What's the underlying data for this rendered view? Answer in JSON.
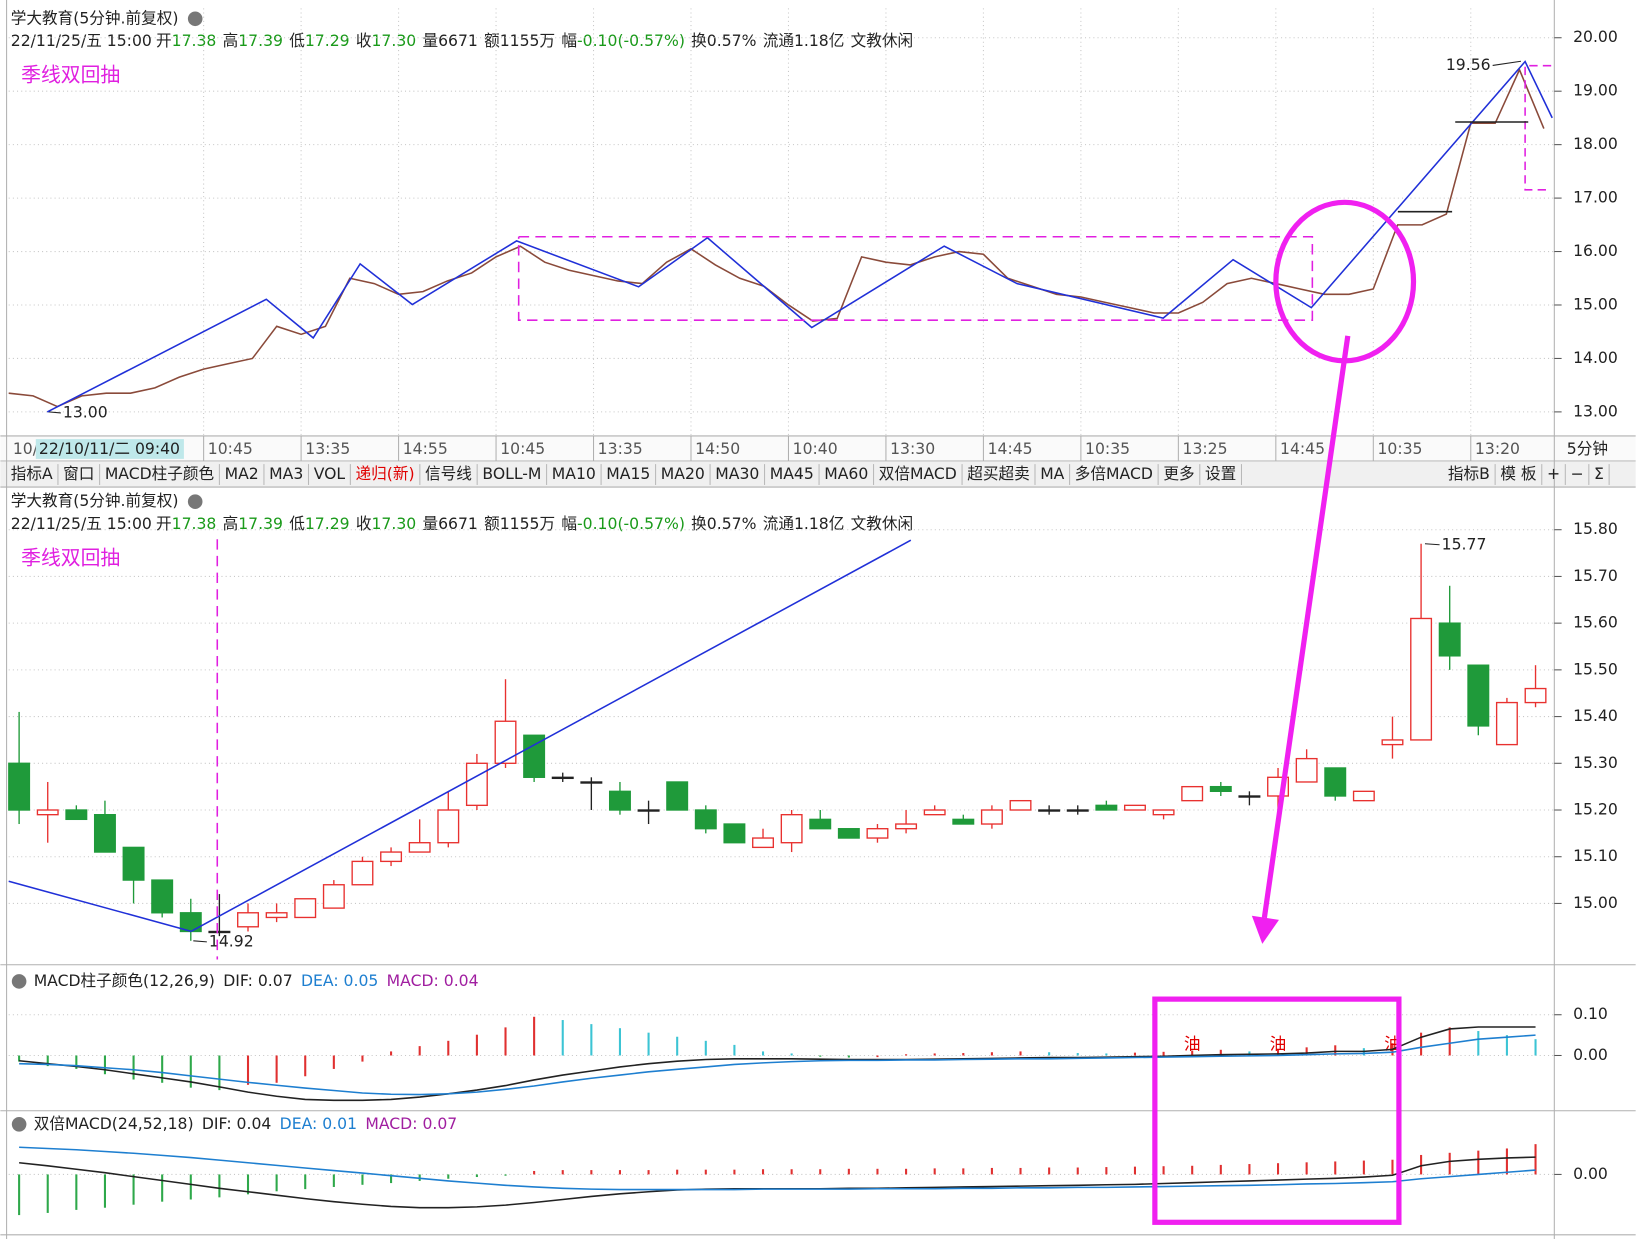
{
  "header": {
    "title": "学大教育(5分钟.前复权)",
    "date": "22/11/25/五 15:00",
    "quote": [
      {
        "label": "开",
        "value": "17.38",
        "color": "#1a9a1a"
      },
      {
        "label": "高",
        "value": "17.39",
        "color": "#1a9a1a"
      },
      {
        "label": "低",
        "value": "17.29",
        "color": "#1a9a1a"
      },
      {
        "label": "收",
        "value": "17.30",
        "color": "#1a9a1a"
      },
      {
        "label": "量",
        "value": "6671",
        "color": "#222222"
      },
      {
        "label": "额",
        "value": "1155万",
        "color": "#222222"
      },
      {
        "label": "幅",
        "value": "-0.10(-0.57%)",
        "color": "#1a9a1a"
      },
      {
        "label": "换",
        "value": "0.57%",
        "color": "#222222"
      },
      {
        "label": "流通",
        "value": "1.18亿",
        "color": "#222222"
      },
      {
        "label": "文教休闲"
      }
    ],
    "indicator": "季线双回抽"
  },
  "toolbar": {
    "left": [
      "指标A",
      "窗口",
      "MACD柱子颜色",
      "MA2",
      "MA3",
      "VOL",
      {
        "text": "递归(新)",
        "color": "#e00000"
      },
      "信号线",
      "BOLL-M",
      "MA10",
      "MA15",
      "MA20",
      "MA30",
      "MA45",
      "MA60",
      "双倍MACD",
      "超买超卖",
      "MA",
      "多倍MACD",
      "更多",
      "设置"
    ],
    "right": [
      "指标B",
      "模 板",
      "+",
      "−",
      "Σ"
    ]
  },
  "chart_data": [
    {
      "type": "line",
      "color": "#8a4a3a",
      "grid": true,
      "cursor_label": "22/10/11/二 09:40",
      "period": "5分钟",
      "categories": [
        "10/",
        null,
        null,
        null,
        null,
        null,
        null,
        null,
        "10:45",
        null,
        null,
        null,
        "13:35",
        null,
        null,
        null,
        "14:55",
        null,
        null,
        null,
        "10:45",
        null,
        null,
        null,
        "13:35",
        null,
        null,
        null,
        "14:50",
        null,
        null,
        null,
        "10:40",
        null,
        null,
        null,
        "13:30",
        null,
        null,
        null,
        "14:45",
        null,
        null,
        null,
        "10:35",
        null,
        null,
        null,
        "13:25",
        null,
        null,
        null,
        "14:45",
        null,
        null,
        null,
        "10:35",
        null,
        null,
        null,
        "13:20",
        null,
        null,
        null
      ],
      "values": [
        13.35,
        13.3,
        13.1,
        13.3,
        13.35,
        13.35,
        13.45,
        13.65,
        13.8,
        13.9,
        14.0,
        14.6,
        14.45,
        14.6,
        15.5,
        15.4,
        15.2,
        15.25,
        15.45,
        15.6,
        15.9,
        16.1,
        15.8,
        15.65,
        15.55,
        15.45,
        15.4,
        15.8,
        16.05,
        15.75,
        15.5,
        15.35,
        15.0,
        14.7,
        14.75,
        15.9,
        15.8,
        15.75,
        15.9,
        16.0,
        15.95,
        15.5,
        15.35,
        15.2,
        15.15,
        15.05,
        14.95,
        14.85,
        14.85,
        15.05,
        15.4,
        15.5,
        15.4,
        15.3,
        15.2,
        15.2,
        15.3,
        16.5,
        16.5,
        16.7,
        18.4,
        18.4,
        19.4,
        18.3
      ],
      "ylim": [
        12.55,
        20.55
      ],
      "yticks": [
        {
          "value": 13,
          "label": "13.00"
        },
        {
          "value": 14,
          "label": "14.00"
        },
        {
          "value": 15,
          "label": "15.00"
        },
        {
          "value": 16,
          "label": "16.00"
        },
        {
          "value": 17,
          "label": "17.00"
        },
        {
          "value": 18,
          "label": "18.00"
        },
        {
          "value": 19,
          "label": "19.00"
        },
        {
          "value": 20,
          "label": "20.00"
        }
      ],
      "annotations": [
        {
          "value": 13.0,
          "label": "13.00"
        },
        {
          "value": 19.56,
          "label": "19.56"
        }
      ]
    },
    {
      "type": "candlestick",
      "up_color": "#e8312f",
      "down_color": "#1f9a3a",
      "flat_color": "#222222",
      "grid": true,
      "open": [
        15.3,
        15.19,
        15.2,
        15.19,
        15.12,
        15.05,
        14.98,
        14.94,
        14.95,
        14.97,
        14.97,
        14.99,
        15.04,
        15.09,
        15.11,
        15.13,
        15.21,
        15.3,
        15.36,
        15.27,
        15.26,
        15.24,
        15.2,
        15.26,
        15.2,
        15.17,
        15.12,
        15.13,
        15.18,
        15.16,
        15.14,
        15.16,
        15.19,
        15.18,
        15.17,
        15.2,
        15.2,
        15.2,
        15.21,
        15.2,
        15.19,
        15.22,
        15.25,
        15.23,
        15.23,
        15.26,
        15.29,
        15.22,
        15.34,
        15.35,
        15.6,
        15.51,
        15.34,
        15.43
      ],
      "high": [
        15.41,
        15.26,
        15.21,
        15.22,
        15.12,
        15.05,
        15.01,
        15.02,
        15.0,
        15.0,
        15.01,
        15.05,
        15.1,
        15.12,
        15.18,
        15.24,
        15.32,
        15.48,
        15.36,
        15.28,
        15.27,
        15.26,
        15.22,
        15.26,
        15.21,
        15.17,
        15.16,
        15.2,
        15.2,
        15.16,
        15.17,
        15.2,
        15.21,
        15.19,
        15.21,
        15.22,
        15.21,
        15.21,
        15.22,
        15.21,
        15.2,
        15.25,
        15.26,
        15.24,
        15.29,
        15.33,
        15.29,
        15.24,
        15.4,
        15.77,
        15.68,
        15.51,
        15.44,
        15.51
      ],
      "low": [
        15.17,
        15.13,
        15.18,
        15.11,
        15.0,
        14.97,
        14.92,
        14.93,
        14.94,
        14.96,
        14.97,
        14.99,
        15.04,
        15.08,
        15.11,
        15.12,
        15.2,
        15.29,
        15.26,
        15.26,
        15.2,
        15.19,
        15.17,
        15.2,
        15.15,
        15.13,
        15.12,
        15.11,
        15.16,
        15.14,
        15.13,
        15.15,
        15.19,
        15.17,
        15.16,
        15.2,
        15.19,
        15.19,
        15.2,
        15.2,
        15.18,
        15.22,
        15.23,
        15.21,
        15.2,
        15.26,
        15.22,
        15.22,
        15.31,
        15.35,
        15.5,
        15.36,
        15.34,
        15.42
      ],
      "close": [
        15.2,
        15.2,
        15.18,
        15.11,
        15.05,
        14.98,
        14.94,
        14.94,
        14.98,
        14.98,
        15.01,
        15.04,
        15.09,
        15.11,
        15.13,
        15.2,
        15.3,
        15.39,
        15.27,
        15.27,
        15.26,
        15.2,
        15.2,
        15.2,
        15.16,
        15.13,
        15.14,
        15.19,
        15.16,
        15.14,
        15.16,
        15.17,
        15.2,
        15.17,
        15.2,
        15.22,
        15.2,
        15.2,
        15.2,
        15.21,
        15.2,
        15.25,
        15.24,
        15.23,
        15.27,
        15.31,
        15.23,
        15.24,
        15.35,
        15.61,
        15.53,
        15.38,
        15.43,
        15.46
      ],
      "ylim": [
        14.88,
        15.84
      ],
      "yticks": [
        {
          "value": 15,
          "label": "15.00"
        },
        {
          "value": 15.1,
          "label": "15.10"
        },
        {
          "value": 15.2,
          "label": "15.20"
        },
        {
          "value": 15.3,
          "label": "15.30"
        },
        {
          "value": 15.4,
          "label": "15.40"
        },
        {
          "value": 15.5,
          "label": "15.50"
        },
        {
          "value": 15.6,
          "label": "15.60"
        },
        {
          "value": 15.7,
          "label": "15.70"
        },
        {
          "value": 15.8,
          "label": "15.80"
        }
      ],
      "annotations": [
        {
          "value": 14.92,
          "label": "14.92"
        },
        {
          "value": 15.77,
          "label": "15.77"
        }
      ]
    },
    {
      "type": "macd",
      "title": "MACD柱子颜色(12,26,9)",
      "grid": true,
      "legend": [
        {
          "text": "DIF: 0.07",
          "color": "#222222"
        },
        {
          "text": "DEA: 0.05",
          "color": "#1e7fd0"
        },
        {
          "text": "MACD: 0.04",
          "color": "#a01ea0"
        }
      ],
      "colors": {
        "rise_positive": "#e03030",
        "fall_positive": "#3cc4d4",
        "fall_negative": "#2ea84a",
        "rise_negative": "#e03030"
      },
      "values": [
        -0.015,
        -0.026,
        -0.033,
        -0.046,
        -0.059,
        -0.067,
        -0.079,
        -0.085,
        -0.072,
        -0.067,
        -0.051,
        -0.033,
        -0.015,
        0.01,
        0.023,
        0.036,
        0.051,
        0.069,
        0.095,
        0.087,
        0.077,
        0.067,
        0.056,
        0.046,
        0.036,
        0.026,
        0.01,
        0.005,
        -0.003,
        -0.005,
        -0.004,
        0.003,
        0.005,
        0.006,
        0.008,
        0.01,
        0.008,
        0.006,
        0.005,
        0.007,
        0.009,
        0.012,
        0.014,
        0.01,
        0.015,
        0.02,
        0.025,
        0.018,
        0.03,
        0.056,
        0.069,
        0.06,
        0.05,
        0.04
      ],
      "signal_labels": [
        null,
        null,
        null,
        null,
        null,
        null,
        null,
        null,
        null,
        null,
        null,
        null,
        null,
        null,
        null,
        null,
        null,
        null,
        null,
        null,
        null,
        null,
        null,
        null,
        null,
        null,
        null,
        null,
        null,
        null,
        null,
        null,
        null,
        null,
        null,
        null,
        null,
        null,
        null,
        null,
        null,
        "油",
        null,
        null,
        "油",
        null,
        null,
        null,
        "油",
        null,
        null,
        null,
        null,
        null
      ],
      "series": [
        {
          "color": "#222222",
          "values": [
            -0.013,
            -0.02,
            -0.027,
            -0.035,
            -0.045,
            -0.055,
            -0.065,
            -0.077,
            -0.09,
            -0.1,
            -0.108,
            -0.11,
            -0.11,
            -0.108,
            -0.102,
            -0.094,
            -0.085,
            -0.074,
            -0.06,
            -0.048,
            -0.038,
            -0.028,
            -0.02,
            -0.014,
            -0.01,
            -0.008,
            -0.008,
            -0.008,
            -0.009,
            -0.01,
            -0.01,
            -0.01,
            -0.009,
            -0.008,
            -0.007,
            -0.006,
            -0.005,
            -0.005,
            -0.004,
            -0.003,
            -0.002,
            0.0,
            0.002,
            0.003,
            0.004,
            0.006,
            0.01,
            0.01,
            0.015,
            0.045,
            0.065,
            0.07,
            0.07,
            0.07
          ]
        },
        {
          "color": "#1e7fd0",
          "values": [
            -0.02,
            -0.022,
            -0.025,
            -0.03,
            -0.035,
            -0.042,
            -0.05,
            -0.058,
            -0.066,
            -0.073,
            -0.08,
            -0.086,
            -0.092,
            -0.095,
            -0.096,
            -0.094,
            -0.09,
            -0.083,
            -0.075,
            -0.065,
            -0.056,
            -0.048,
            -0.04,
            -0.034,
            -0.028,
            -0.022,
            -0.018,
            -0.015,
            -0.013,
            -0.012,
            -0.012,
            -0.011,
            -0.011,
            -0.01,
            -0.009,
            -0.008,
            -0.008,
            -0.007,
            -0.006,
            -0.005,
            -0.004,
            -0.003,
            -0.002,
            -0.001,
            0.0,
            0.002,
            0.004,
            0.005,
            0.008,
            0.02,
            0.03,
            0.04,
            0.045,
            0.05
          ]
        }
      ],
      "ylim": [
        -0.133,
        0.146
      ],
      "yticks": [
        {
          "value": 0.1,
          "label": "0.10"
        },
        {
          "value": 0,
          "label": "0.00"
        }
      ]
    },
    {
      "type": "macd",
      "title": "双倍MACD(24,52,18)",
      "grid": true,
      "legend": [
        {
          "text": "DIF: 0.04",
          "color": "#222222"
        },
        {
          "text": "DEA: 0.01",
          "color": "#1e7fd0"
        },
        {
          "text": "MACD: 0.07",
          "color": "#a01ea0"
        }
      ],
      "colors": {
        "rise_positive": "#e03030",
        "fall_positive": "#e03030",
        "fall_negative": "#2ea84a",
        "rise_negative": "#2ea84a"
      },
      "values": [
        -0.094,
        -0.089,
        -0.082,
        -0.077,
        -0.07,
        -0.063,
        -0.058,
        -0.053,
        -0.046,
        -0.039,
        -0.034,
        -0.029,
        -0.024,
        -0.02,
        -0.015,
        -0.01,
        -0.006,
        -0.003,
        0.008,
        0.01,
        0.01,
        0.01,
        0.01,
        0.011,
        0.011,
        0.011,
        0.012,
        0.012,
        0.012,
        0.013,
        0.013,
        0.013,
        0.014,
        0.014,
        0.015,
        0.015,
        0.016,
        0.016,
        0.017,
        0.018,
        0.019,
        0.02,
        0.022,
        0.024,
        0.026,
        0.028,
        0.03,
        0.032,
        0.034,
        0.045,
        0.05,
        0.055,
        0.06,
        0.07
      ],
      "series": [
        {
          "color": "#222222",
          "values": [
            0.027,
            0.02,
            0.012,
            0.004,
            -0.005,
            -0.014,
            -0.023,
            -0.032,
            -0.04,
            -0.048,
            -0.056,
            -0.063,
            -0.069,
            -0.074,
            -0.077,
            -0.077,
            -0.075,
            -0.071,
            -0.065,
            -0.058,
            -0.051,
            -0.045,
            -0.04,
            -0.036,
            -0.034,
            -0.033,
            -0.033,
            -0.033,
            -0.033,
            -0.032,
            -0.032,
            -0.031,
            -0.03,
            -0.029,
            -0.028,
            -0.027,
            -0.026,
            -0.025,
            -0.024,
            -0.023,
            -0.021,
            -0.019,
            -0.017,
            -0.015,
            -0.013,
            -0.011,
            -0.009,
            -0.006,
            -0.002,
            0.02,
            0.03,
            0.035,
            0.038,
            0.04
          ]
        },
        {
          "color": "#1e7fd0",
          "values": [
            0.063,
            0.06,
            0.057,
            0.053,
            0.049,
            0.044,
            0.039,
            0.033,
            0.027,
            0.021,
            0.015,
            0.009,
            0.003,
            -0.003,
            -0.009,
            -0.015,
            -0.02,
            -0.025,
            -0.029,
            -0.032,
            -0.034,
            -0.035,
            -0.035,
            -0.035,
            -0.035,
            -0.035,
            -0.034,
            -0.034,
            -0.034,
            -0.034,
            -0.033,
            -0.033,
            -0.033,
            -0.032,
            -0.032,
            -0.031,
            -0.031,
            -0.03,
            -0.03,
            -0.029,
            -0.028,
            -0.027,
            -0.026,
            -0.025,
            -0.024,
            -0.022,
            -0.021,
            -0.019,
            -0.017,
            -0.01,
            -0.005,
            0.0,
            0.005,
            0.01
          ]
        }
      ],
      "ylim": [
        -0.13,
        0.087
      ],
      "yticks": [
        {
          "value": 0,
          "label": "0.00"
        }
      ]
    }
  ]
}
